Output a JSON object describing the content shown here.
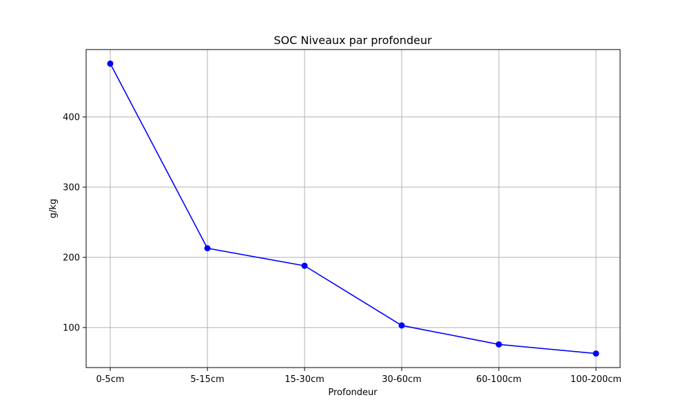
{
  "chart_data": {
    "type": "line",
    "title": "SOC Niveaux par profondeur",
    "xlabel": "Profondeur",
    "ylabel": "g/kg",
    "categories": [
      "0-5cm",
      "5-15cm",
      "15-30cm",
      "30-60cm",
      "60-100cm",
      "100-200cm"
    ],
    "series": [
      {
        "values": [
          476,
          213,
          188,
          103,
          76,
          63
        ]
      }
    ],
    "ylim": [
      43,
      496
    ],
    "yticks": [
      100,
      200,
      300,
      400
    ],
    "grid": true,
    "marker": "circle",
    "colors": {
      "line": "#0000ff",
      "grid": "#b0b0b0",
      "axes": "#000000"
    }
  }
}
